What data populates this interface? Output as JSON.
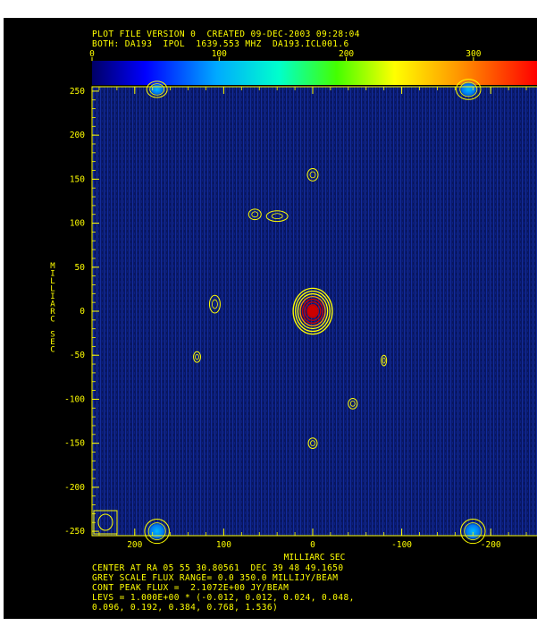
{
  "header": {
    "line1": "PLOT FILE VERSION 0  CREATED 09-DEC-2003 09:28:04",
    "line2": "BOTH: DA193  IPOL  1639.553 MHZ  DA193.ICL001.6"
  },
  "colorbar": {
    "ticks": [
      0,
      100,
      200,
      300
    ],
    "range": [
      0,
      350
    ]
  },
  "footer": {
    "line1": "CENTER AT RA 05 55 30.80561  DEC 39 48 49.1650",
    "line2": "GREY SCALE FLUX RANGE= 0.0 350.0 MILLIJY/BEAM",
    "line3": "CONT PEAK FLUX =  2.1072E+00 JY/BEAM",
    "line4": "LEVS = 1.000E+00 * (-0.012, 0.012, 0.024, 0.048,",
    "line5": "0.096, 0.192, 0.384, 0.768, 1.536)"
  },
  "colors": {
    "background": "#000000",
    "map_noise": "#0a1a6e",
    "contour": "#ffff00",
    "core": "#cc0000",
    "frame": "#ffff00"
  },
  "chart_data": {
    "type": "heatmap",
    "xlabel": "MILLIARC SEC",
    "ylabel": "MILLIARC SEC",
    "xlim": [
      250,
      -250
    ],
    "ylim": [
      -255,
      255
    ],
    "xticks": [
      200,
      100,
      0,
      -100,
      -200
    ],
    "yticks": [
      250,
      200,
      150,
      100,
      50,
      0,
      -50,
      -100,
      -150,
      -200,
      -250
    ],
    "xtick_labels": [
      "200",
      "100",
      "0",
      "-100",
      "-200"
    ],
    "ytick_labels": [
      "250",
      "200",
      "150",
      "100",
      "50",
      "0",
      "-50",
      "-100",
      "-150",
      "-200",
      "-250"
    ],
    "peak_flux": "2.1072E+00 JY/BEAM",
    "grey_scale_range_mjy": [
      0.0,
      350.0
    ],
    "contour_levels": [
      -0.012,
      0.012,
      0.024,
      0.048,
      0.096,
      0.192,
      0.384,
      0.768,
      1.536
    ],
    "sources": [
      {
        "x": 0,
        "y": 0,
        "w": 22,
        "h": 26,
        "kind": "core"
      },
      {
        "x": 110,
        "y": 8,
        "w": 6,
        "h": 10,
        "kind": "blob"
      },
      {
        "x": 65,
        "y": 110,
        "w": 7,
        "h": 6,
        "kind": "blob"
      },
      {
        "x": 40,
        "y": 108,
        "w": 12,
        "h": 6,
        "kind": "blob"
      },
      {
        "x": 0,
        "y": 155,
        "w": 6,
        "h": 7,
        "kind": "blob"
      },
      {
        "x": 130,
        "y": -52,
        "w": 4,
        "h": 6,
        "kind": "blob"
      },
      {
        "x": -80,
        "y": -56,
        "w": 3,
        "h": 6,
        "kind": "blob"
      },
      {
        "x": -45,
        "y": -105,
        "w": 5,
        "h": 6,
        "kind": "blob"
      },
      {
        "x": 0,
        "y": -150,
        "w": 5,
        "h": 6,
        "kind": "blob"
      },
      {
        "x": 175,
        "y": -250,
        "w": 12,
        "h": 12,
        "kind": "edge"
      },
      {
        "x": -180,
        "y": -250,
        "w": 12,
        "h": 12,
        "kind": "edge"
      },
      {
        "x": -175,
        "y": 252,
        "w": 12,
        "h": 10,
        "kind": "edge"
      },
      {
        "x": 175,
        "y": 252,
        "w": 10,
        "h": 8,
        "kind": "edge"
      }
    ]
  }
}
